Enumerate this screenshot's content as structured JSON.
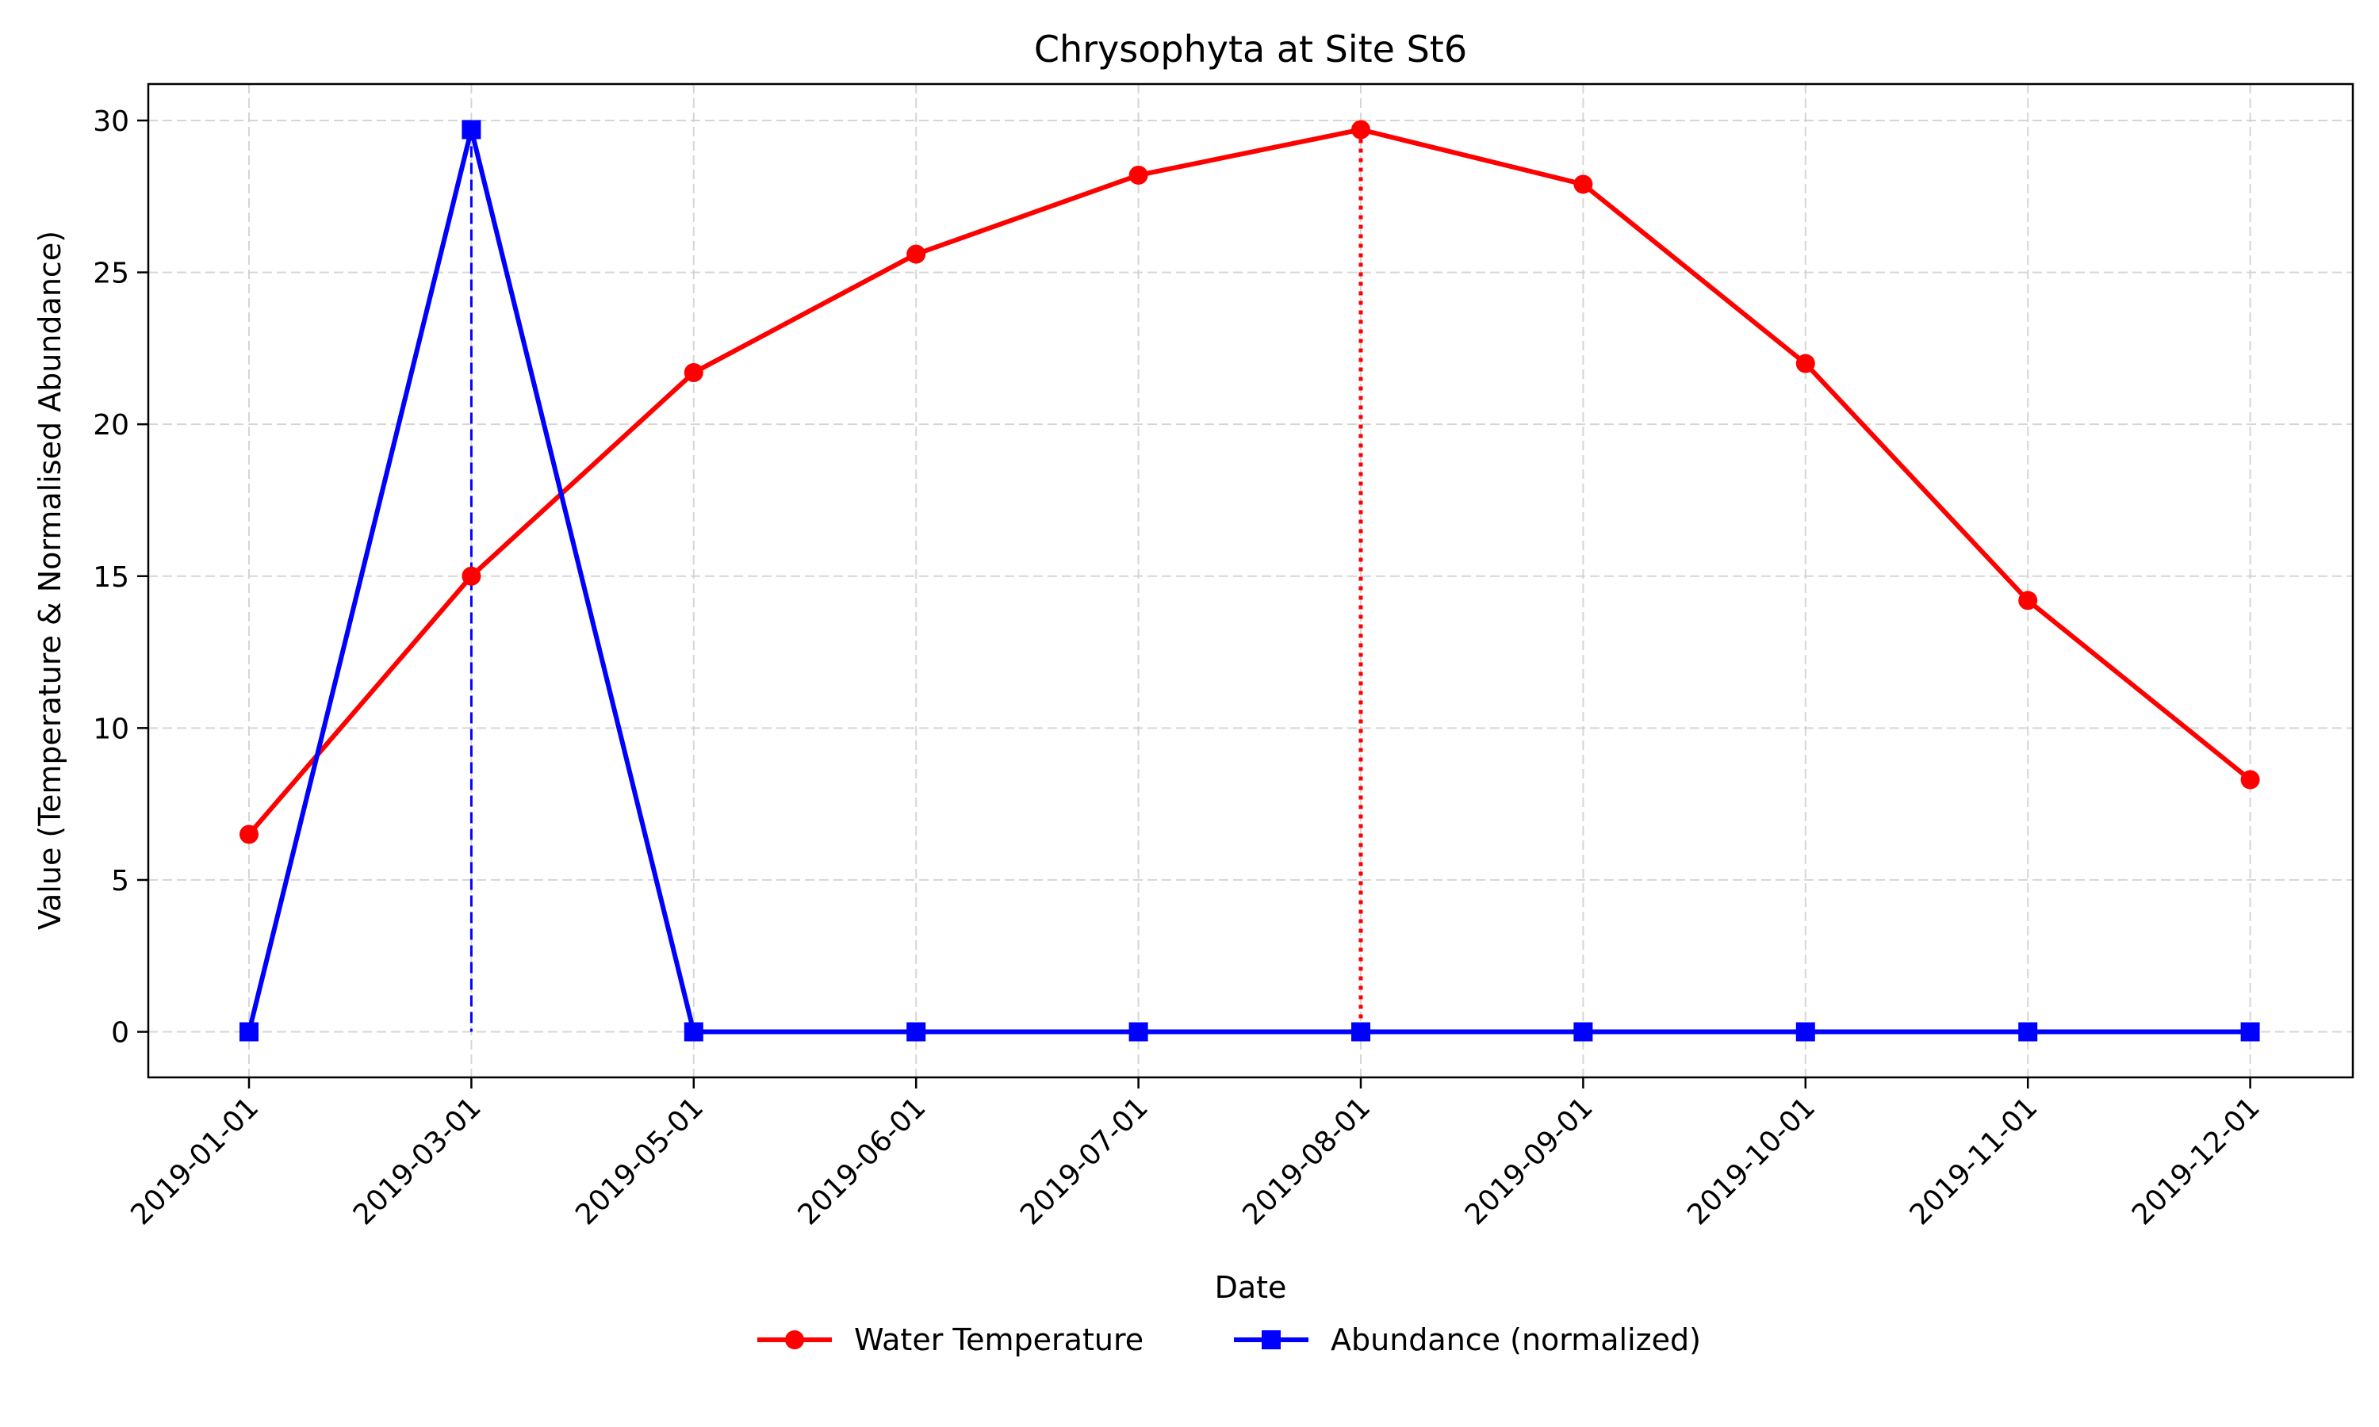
{
  "chart_data": {
    "type": "line",
    "title": "Chrysophyta at Site St6",
    "xlabel": "Date",
    "ylabel": "Value (Temperature & Normalised Abundance)",
    "x": [
      "2019-01-01",
      "2019-03-01",
      "2019-05-01",
      "2019-06-01",
      "2019-07-01",
      "2019-08-01",
      "2019-09-01",
      "2019-10-01",
      "2019-11-01",
      "2019-12-01"
    ],
    "ylim": [
      -1.5,
      31.2
    ],
    "yticks": [
      0,
      5,
      10,
      15,
      20,
      25,
      30
    ],
    "grid": true,
    "legend_position": "bottom-center",
    "series": [
      {
        "name": "Water Temperature",
        "color": "#ff0000",
        "marker": "circle",
        "values": [
          6.5,
          15.0,
          21.7,
          25.6,
          28.2,
          29.7,
          27.9,
          22.0,
          14.2,
          8.3
        ]
      },
      {
        "name": "Abundance (normalized)",
        "color": "#0000ff",
        "marker": "square",
        "values": [
          0,
          29.7,
          0,
          0,
          0,
          0,
          0,
          0,
          0,
          0
        ]
      }
    ],
    "annotations": [
      {
        "style": "dotted",
        "color": "#ff0000",
        "x": "2019-08-01",
        "y": 29.7
      },
      {
        "style": "dashed",
        "color": "#0000ff",
        "x": "2019-03-01",
        "y": 29.7
      }
    ]
  }
}
